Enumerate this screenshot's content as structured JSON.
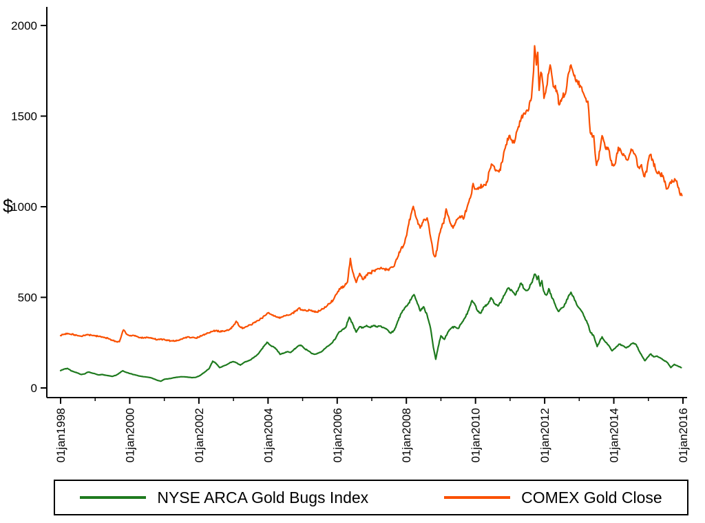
{
  "figure": {
    "background": "#ffffff"
  },
  "chart_data": {
    "type": "line",
    "title": "",
    "ylabel": "$",
    "xlabel": "",
    "grid": false,
    "xlim": [
      1998,
      2016.2
    ],
    "ylim": [
      0,
      2000
    ],
    "y_ticks": [
      0,
      500,
      1000,
      1500,
      2000
    ],
    "x_ticks": {
      "major_years": [
        1998,
        2000,
        2002,
        2004,
        2006,
        2008,
        2010,
        2012,
        2014,
        2016
      ],
      "labels": [
        "01jan1998",
        "01jan2000",
        "01jan2002",
        "01jan2004",
        "01jan2006",
        "01jan2008",
        "01jan2010",
        "01jan2012",
        "01jan2014",
        "01jan2016"
      ],
      "minor_years": [
        1999,
        2001,
        2003,
        2005,
        2007,
        2009,
        2011,
        2013,
        2015
      ]
    },
    "legend": {
      "position": "bottom",
      "border": true
    },
    "series": [
      {
        "name": "NYSE ARCA Gold Bugs Index",
        "color": "#1e7a1e",
        "x": [
          1998.0,
          1998.1,
          1998.2,
          1998.3,
          1998.4,
          1998.5,
          1998.6,
          1998.7,
          1998.8,
          1998.9,
          1999.0,
          1999.1,
          1999.2,
          1999.3,
          1999.4,
          1999.5,
          1999.6,
          1999.7,
          1999.8,
          1999.9,
          2000.0,
          2000.1,
          2000.2,
          2000.3,
          2000.4,
          2000.5,
          2000.6,
          2000.7,
          2000.8,
          2000.9,
          2001.0,
          2001.1,
          2001.2,
          2001.3,
          2001.4,
          2001.5,
          2001.6,
          2001.7,
          2001.8,
          2001.9,
          2002.0,
          2002.1,
          2002.2,
          2002.3,
          2002.4,
          2002.5,
          2002.6,
          2002.7,
          2002.8,
          2002.9,
          2003.0,
          2003.1,
          2003.2,
          2003.3,
          2003.4,
          2003.5,
          2003.6,
          2003.7,
          2003.8,
          2003.9,
          2003.97,
          2004.05,
          2004.15,
          2004.25,
          2004.35,
          2004.45,
          2004.55,
          2004.65,
          2004.75,
          2004.85,
          2004.95,
          2005.05,
          2005.15,
          2005.25,
          2005.35,
          2005.45,
          2005.55,
          2005.65,
          2005.75,
          2005.85,
          2005.95,
          2006.05,
          2006.15,
          2006.25,
          2006.35,
          2006.45,
          2006.55,
          2006.65,
          2006.75,
          2006.85,
          2006.95,
          2007.05,
          2007.15,
          2007.25,
          2007.35,
          2007.45,
          2007.55,
          2007.65,
          2007.75,
          2007.85,
          2007.95,
          2008.05,
          2008.15,
          2008.22,
          2008.3,
          2008.4,
          2008.5,
          2008.6,
          2008.7,
          2008.78,
          2008.85,
          2008.92,
          2009.0,
          2009.1,
          2009.2,
          2009.3,
          2009.4,
          2009.5,
          2009.6,
          2009.7,
          2009.8,
          2009.9,
          2009.97,
          2010.05,
          2010.15,
          2010.25,
          2010.35,
          2010.45,
          2010.55,
          2010.65,
          2010.75,
          2010.85,
          2010.95,
          2011.05,
          2011.15,
          2011.25,
          2011.32,
          2011.4,
          2011.5,
          2011.6,
          2011.68,
          2011.72,
          2011.78,
          2011.82,
          2011.87,
          2011.92,
          2011.97,
          2012.05,
          2012.12,
          2012.2,
          2012.3,
          2012.4,
          2012.5,
          2012.6,
          2012.7,
          2012.76,
          2012.85,
          2012.95,
          2013.05,
          2013.15,
          2013.25,
          2013.32,
          2013.42,
          2013.52,
          2013.6,
          2013.66,
          2013.75,
          2013.85,
          2013.95,
          2014.05,
          2014.15,
          2014.25,
          2014.35,
          2014.45,
          2014.55,
          2014.65,
          2014.75,
          2014.85,
          2014.9,
          2014.97,
          2015.07,
          2015.15,
          2015.25,
          2015.35,
          2015.45,
          2015.55,
          2015.65,
          2015.75,
          2015.85,
          2015.95
        ],
        "values": [
          96,
          104,
          108,
          95,
          88,
          82,
          74,
          78,
          88,
          83,
          78,
          72,
          74,
          70,
          67,
          64,
          70,
          82,
          95,
          86,
          80,
          74,
          70,
          65,
          62,
          60,
          57,
          50,
          42,
          37,
          48,
          50,
          53,
          57,
          60,
          62,
          61,
          59,
          57,
          58,
          65,
          78,
          92,
          108,
          148,
          135,
          112,
          120,
          128,
          140,
          145,
          138,
          126,
          140,
          148,
          155,
          170,
          185,
          210,
          235,
          252,
          238,
          228,
          212,
          185,
          192,
          200,
          196,
          212,
          228,
          236,
          218,
          206,
          192,
          186,
          192,
          200,
          218,
          232,
          248,
          272,
          308,
          322,
          335,
          390,
          352,
          308,
          338,
          332,
          345,
          334,
          345,
          336,
          342,
          332,
          322,
          302,
          318,
          368,
          412,
          442,
          462,
          495,
          515,
          478,
          425,
          448,
          402,
          328,
          225,
          158,
          225,
          288,
          268,
          308,
          330,
          338,
          328,
          358,
          388,
          428,
          482,
          465,
          428,
          412,
          448,
          462,
          498,
          465,
          452,
          478,
          518,
          552,
          538,
          512,
          552,
          578,
          548,
          538,
          572,
          608,
          628,
          598,
          618,
          562,
          592,
          535,
          512,
          548,
          502,
          462,
          422,
          442,
          465,
          512,
          528,
          495,
          452,
          428,
          392,
          352,
          308,
          288,
          228,
          262,
          282,
          255,
          235,
          205,
          222,
          242,
          234,
          222,
          232,
          248,
          238,
          198,
          165,
          150,
          168,
          188,
          172,
          176,
          165,
          152,
          140,
          112,
          130,
          121,
          112
        ]
      },
      {
        "name": "COMEX Gold Close",
        "color": "#fa5000",
        "x": [
          1998.0,
          1998.1,
          1998.2,
          1998.3,
          1998.4,
          1998.5,
          1998.6,
          1998.7,
          1998.8,
          1998.9,
          1999.0,
          1999.1,
          1999.2,
          1999.3,
          1999.4,
          1999.5,
          1999.6,
          1999.7,
          1999.78,
          1999.82,
          1999.9,
          2000.0,
          2000.1,
          2000.2,
          2000.3,
          2000.4,
          2000.5,
          2000.6,
          2000.7,
          2000.8,
          2000.9,
          2001.0,
          2001.1,
          2001.2,
          2001.3,
          2001.4,
          2001.5,
          2001.6,
          2001.7,
          2001.8,
          2001.9,
          2002.0,
          2002.1,
          2002.2,
          2002.3,
          2002.4,
          2002.5,
          2002.6,
          2002.7,
          2002.8,
          2002.9,
          2003.0,
          2003.08,
          2003.2,
          2003.3,
          2003.4,
          2003.5,
          2003.6,
          2003.7,
          2003.8,
          2003.9,
          2004.0,
          2004.1,
          2004.2,
          2004.3,
          2004.4,
          2004.5,
          2004.6,
          2004.7,
          2004.8,
          2004.9,
          2005.0,
          2005.1,
          2005.2,
          2005.3,
          2005.4,
          2005.5,
          2005.6,
          2005.7,
          2005.8,
          2005.9,
          2006.0,
          2006.1,
          2006.2,
          2006.3,
          2006.38,
          2006.45,
          2006.55,
          2006.65,
          2006.75,
          2006.85,
          2006.95,
          2007.05,
          2007.15,
          2007.25,
          2007.35,
          2007.45,
          2007.55,
          2007.65,
          2007.75,
          2007.85,
          2007.95,
          2008.05,
          2008.15,
          2008.2,
          2008.3,
          2008.4,
          2008.5,
          2008.6,
          2008.7,
          2008.78,
          2008.85,
          2008.92,
          2009.0,
          2009.08,
          2009.15,
          2009.25,
          2009.35,
          2009.45,
          2009.55,
          2009.65,
          2009.75,
          2009.85,
          2009.93,
          2010.0,
          2010.1,
          2010.2,
          2010.3,
          2010.4,
          2010.48,
          2010.58,
          2010.68,
          2010.78,
          2010.88,
          2010.97,
          2011.05,
          2011.12,
          2011.22,
          2011.32,
          2011.42,
          2011.52,
          2011.62,
          2011.68,
          2011.71,
          2011.76,
          2011.8,
          2011.84,
          2011.89,
          2011.94,
          2011.98,
          2012.05,
          2012.12,
          2012.16,
          2012.25,
          2012.35,
          2012.42,
          2012.5,
          2012.6,
          2012.7,
          2012.76,
          2012.85,
          2012.95,
          2013.05,
          2013.15,
          2013.25,
          2013.32,
          2013.42,
          2013.5,
          2013.6,
          2013.66,
          2013.75,
          2013.85,
          2013.95,
          2014.05,
          2014.13,
          2014.22,
          2014.32,
          2014.42,
          2014.5,
          2014.6,
          2014.7,
          2014.8,
          2014.87,
          2014.95,
          2015.03,
          2015.12,
          2015.22,
          2015.32,
          2015.42,
          2015.52,
          2015.62,
          2015.72,
          2015.82,
          2015.9,
          2015.97
        ],
        "values": [
          289,
          296,
          301,
          296,
          293,
          288,
          285,
          289,
          294,
          291,
          287,
          284,
          282,
          276,
          271,
          262,
          256,
          255,
          302,
          320,
          298,
          288,
          290,
          285,
          278,
          275,
          280,
          277,
          272,
          266,
          269,
          268,
          262,
          260,
          258,
          262,
          270,
          276,
          282,
          278,
          275,
          281,
          290,
          298,
          304,
          312,
          318,
          310,
          314,
          318,
          324,
          345,
          368,
          335,
          330,
          340,
          348,
          360,
          372,
          384,
          398,
          414,
          404,
          398,
          388,
          392,
          398,
          402,
          412,
          425,
          442,
          428,
          426,
          430,
          424,
          420,
          426,
          437,
          452,
          468,
          490,
          524,
          552,
          560,
          585,
          715,
          640,
          582,
          632,
          598,
          625,
          632,
          648,
          655,
          662,
          658,
          652,
          665,
          672,
          722,
          772,
          800,
          890,
          968,
          1002,
          932,
          882,
          928,
          938,
          832,
          742,
          728,
          808,
          878,
          908,
          988,
          922,
          882,
          928,
          948,
          932,
          992,
          1048,
          1128,
          1098,
          1108,
          1112,
          1118,
          1198,
          1232,
          1198,
          1192,
          1248,
          1342,
          1392,
          1368,
          1352,
          1428,
          1488,
          1512,
          1528,
          1602,
          1748,
          1888,
          1782,
          1852,
          1642,
          1742,
          1692,
          1598,
          1658,
          1738,
          1782,
          1662,
          1642,
          1562,
          1598,
          1622,
          1742,
          1782,
          1722,
          1692,
          1662,
          1612,
          1582,
          1408,
          1392,
          1228,
          1312,
          1392,
          1328,
          1318,
          1228,
          1242,
          1328,
          1298,
          1282,
          1262,
          1318,
          1292,
          1218,
          1232,
          1168,
          1192,
          1282,
          1262,
          1198,
          1188,
          1172,
          1098,
          1132,
          1138,
          1142,
          1078,
          1062
        ]
      }
    ]
  }
}
